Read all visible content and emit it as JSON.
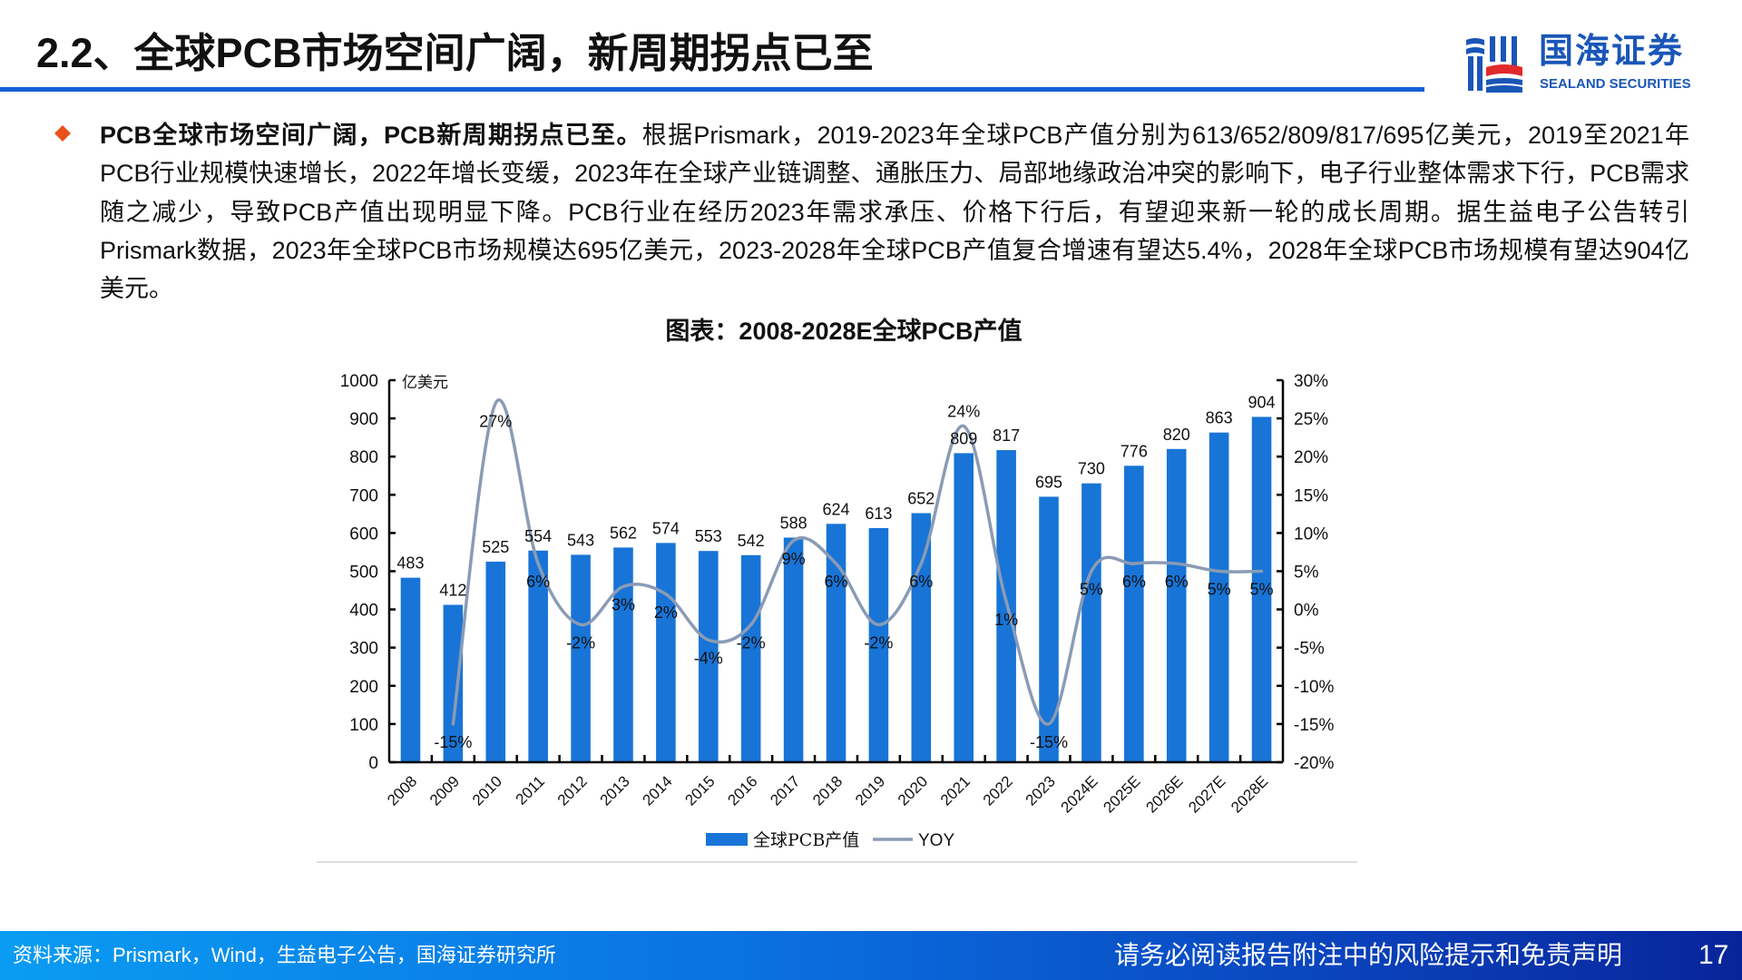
{
  "header": {
    "title": "2.2、全球PCB市场空间广阔，新周期拐点已至",
    "logo_cn": "国海证券",
    "logo_en": "SEALAND SECURITIES"
  },
  "bullet": {
    "icon": "diamond-icon",
    "bold_lead": "PCB全球市场空间广阔，PCB新周期拐点已至。",
    "text": "根据Prismark，2019-2023年全球PCB产值分别为613/652/809/817/695亿美元，2019至2021年PCB行业规模快速增长，2022年增长变缓，2023年在全球产业链调整、通胀压力、局部地缘政治冲突的影响下，电子行业整体需求下行，PCB需求随之减少，导致PCB产值出现明显下降。PCB行业在经历2023年需求承压、价格下行后，有望迎来新一轮的成长周期。据生益电子公告转引Prismark数据，2023年全球PCB市场规模达695亿美元，2023-2028年全球PCB产值复合增速有望达5.4%，2028年全球PCB市场规模有望达904亿美元。"
  },
  "chart_data": {
    "type": "bar",
    "title": "图表：2008-2028E全球PCB产值",
    "categories": [
      "2008",
      "2009",
      "2010",
      "2011",
      "2012",
      "2013",
      "2014",
      "2015",
      "2016",
      "2017",
      "2018",
      "2019",
      "2020",
      "2021",
      "2022",
      "2023",
      "2024E",
      "2025E",
      "2026E",
      "2027E",
      "2028E"
    ],
    "series": [
      {
        "name": "全球PCB产值",
        "type": "bar",
        "axis": "left",
        "color": "#1874d6",
        "values": [
          483,
          412,
          525,
          554,
          543,
          562,
          574,
          553,
          542,
          588,
          624,
          613,
          652,
          809,
          817,
          695,
          730,
          776,
          820,
          863,
          904
        ],
        "labels": [
          "483",
          "412",
          "525",
          "554",
          "543",
          "562",
          "574",
          "553",
          "542",
          "588",
          "624",
          "613",
          "652",
          "809",
          "817",
          "695",
          "730",
          "776",
          "820",
          "863",
          "904"
        ]
      },
      {
        "name": "YOY",
        "type": "line",
        "axis": "right",
        "color": "#8a9bb5",
        "values": [
          null,
          -15,
          27,
          6,
          -2,
          3,
          2,
          -4,
          -2,
          9,
          6,
          -2,
          6,
          24,
          1,
          -15,
          5,
          6,
          6,
          5,
          5
        ],
        "labels": [
          "",
          "-15%",
          "27%",
          "6%",
          "-2%",
          "3%",
          "2%",
          "-4%",
          "-2%",
          "9%",
          "6%",
          "-2%",
          "6%",
          "24%",
          "1%",
          "-15%",
          "5%",
          "6%",
          "6%",
          "5%",
          "5%"
        ]
      }
    ],
    "y_left": {
      "unit_label": "亿美元",
      "min": 0,
      "max": 1000,
      "ticks": [
        "0",
        "100",
        "200",
        "300",
        "400",
        "500",
        "600",
        "700",
        "800",
        "900",
        "1000"
      ]
    },
    "y_right": {
      "min": -20,
      "max": 30,
      "ticks": [
        "-20%",
        "-15%",
        "-10%",
        "-5%",
        "0%",
        "5%",
        "10%",
        "15%",
        "20%",
        "25%",
        "30%"
      ]
    },
    "legend": {
      "position": "bottom",
      "items": [
        "全球PCB产值",
        "YOY"
      ]
    },
    "grid": false
  },
  "footer": {
    "source": "资料来源：Prismark，Wind，生益电子公告，国海证券研究所",
    "disclaimer": "请务必阅读报告附注中的风险提示和免责声明",
    "page": "17"
  }
}
